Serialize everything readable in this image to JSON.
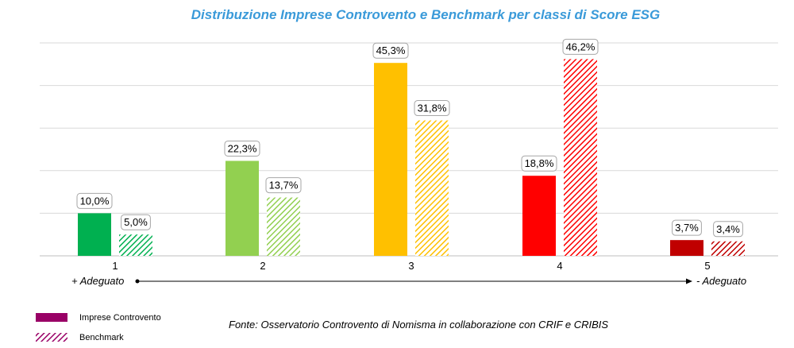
{
  "chart_data": {
    "type": "bar",
    "title": "Distribuzione Imprese Controvento e Benchmark per classi di Score ESG",
    "title_color": "#3A9AD9",
    "categories": [
      "1",
      "2",
      "3",
      "4",
      "5"
    ],
    "series": [
      {
        "name": "Imprese Controvento",
        "values": [
          10.0,
          22.3,
          45.3,
          18.8,
          3.7
        ],
        "labels": [
          "10,0%",
          "22,3%",
          "45,3%",
          "18,8%",
          "3,7%"
        ],
        "colors": [
          "#00B050",
          "#92D050",
          "#FFC000",
          "#FF0000",
          "#C00000"
        ],
        "fill": "solid"
      },
      {
        "name": "Benchmark",
        "values": [
          5.0,
          13.7,
          31.8,
          46.2,
          3.4
        ],
        "labels": [
          "5,0%",
          "13,7%",
          "31,8%",
          "46,2%",
          "3,4%"
        ],
        "colors": [
          "#00B050",
          "#92D050",
          "#FFC000",
          "#FF0000",
          "#C00000"
        ],
        "fill": "hatched"
      }
    ],
    "ylim": [
      0,
      50
    ],
    "gridlines": [
      0,
      10,
      20,
      30,
      40,
      50
    ],
    "grid": true,
    "y_axis_labels": false,
    "axis_note": {
      "left": "+ Adeguato",
      "right": "- Adeguato"
    },
    "legend": {
      "position": "bottom-left",
      "items": [
        {
          "label": "Imprese Controvento",
          "color": "#990066",
          "fill": "solid"
        },
        {
          "label": "Benchmark",
          "color": "#990066",
          "fill": "hatched"
        }
      ]
    },
    "source": "Fonte: Osservatorio Controvento di Nomisma in collaborazione con CRIF e CRIBIS"
  }
}
